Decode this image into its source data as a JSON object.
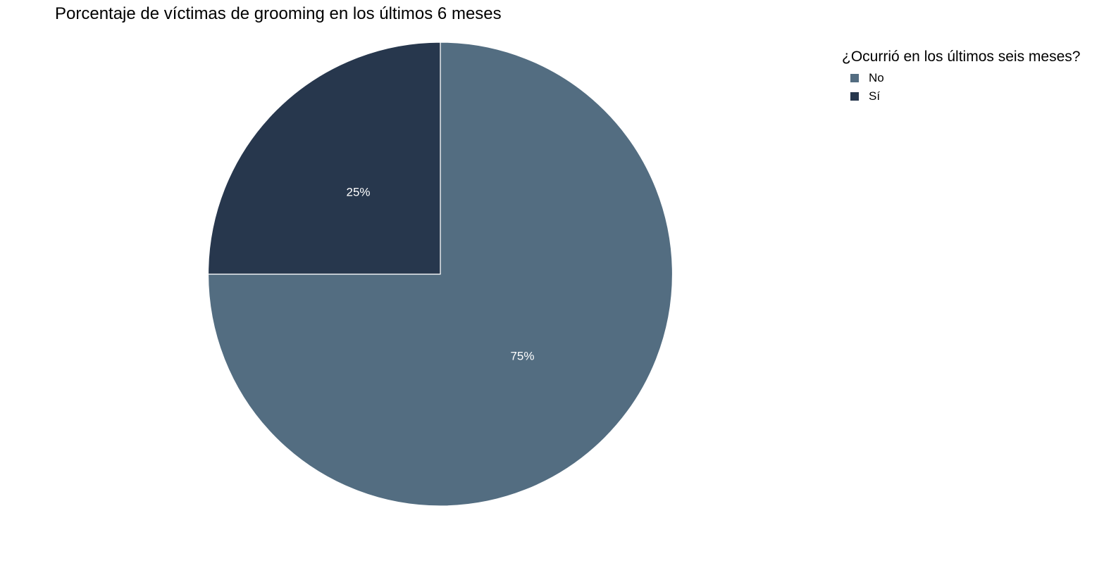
{
  "chart_data": {
    "type": "pie",
    "title": "Porcentaje de víctimas de grooming en los últimos 6 meses",
    "legend_title": "¿Ocurrió en los últimos seis meses?",
    "legend_position": "top-right",
    "slices": [
      {
        "name": "No",
        "value": 75,
        "label": "75%",
        "color": "#536d81"
      },
      {
        "name": "Sí",
        "value": 25,
        "label": "25%",
        "color": "#27374d"
      }
    ]
  }
}
